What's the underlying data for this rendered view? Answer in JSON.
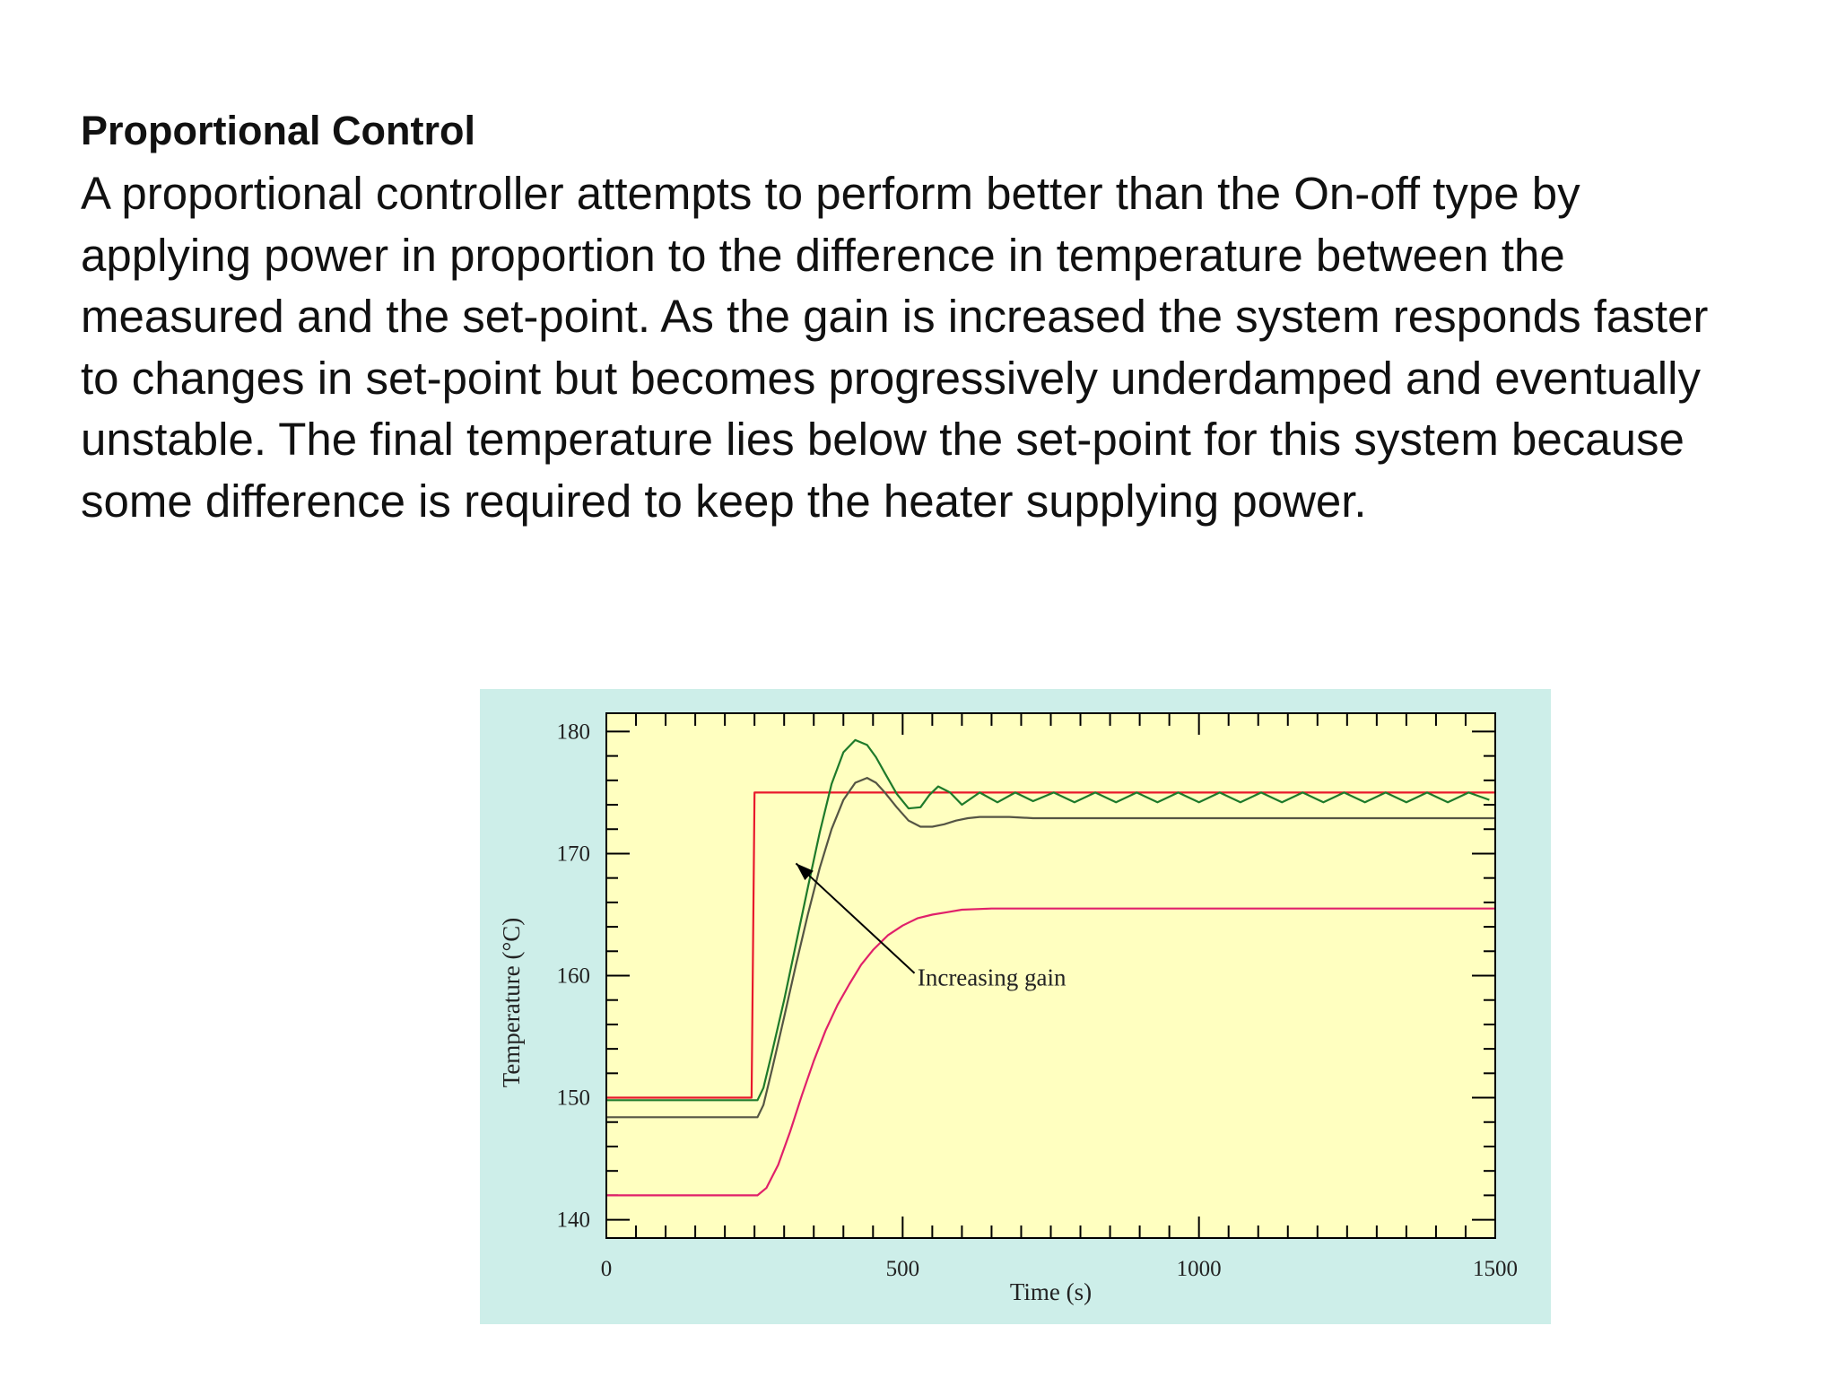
{
  "slide": {
    "title": "Proportional Control",
    "paragraph_lines": [
      "A proportional controller attempts to perform better than the On-off type by",
      "applying power in proportion to the difference in temperature between the",
      "measured and the set-point.  As the gain is increased the system responds faster",
      "to changes in set-point but becomes progressively underdamped and eventually",
      "unstable. The final temperature lies below the set-point for this system because",
      "some difference is required to keep the heater supplying power."
    ]
  },
  "chart_data": {
    "type": "line",
    "title": "",
    "xlabel": "Time (s)",
    "ylabel": "Temperature (°C)",
    "xlim": [
      0,
      1500
    ],
    "ylim": [
      138.5,
      181.5
    ],
    "x_ticks": [
      0,
      500,
      1000,
      1500
    ],
    "y_ticks": [
      140,
      150,
      160,
      170,
      180
    ],
    "x_minor_step": 50,
    "y_minor_step": 2,
    "grid": false,
    "annotation": {
      "text": "Increasing gain",
      "text_at": [
        525,
        159.2
      ],
      "arrow_from": [
        520,
        160.2
      ],
      "arrow_to": [
        320,
        169.2
      ]
    },
    "colors": {
      "panel": "#cdeee9",
      "plot_bg": "#ffffc0",
      "axis": "#000000"
    },
    "series": [
      {
        "color": "#e8192c",
        "x": [
          0,
          245,
          250,
          1500
        ],
        "y": [
          150,
          150,
          175,
          175
        ]
      },
      {
        "color": "#e0206a",
        "x": [
          0,
          255,
          270,
          290,
          310,
          330,
          350,
          370,
          390,
          410,
          430,
          450,
          475,
          500,
          525,
          550,
          575,
          600,
          650,
          700,
          1500
        ],
        "y": [
          142,
          142,
          142.6,
          144.5,
          147.2,
          150.2,
          153.0,
          155.5,
          157.6,
          159.3,
          160.9,
          162.1,
          163.3,
          164.1,
          164.7,
          165.0,
          165.2,
          165.4,
          165.5,
          165.5,
          165.5
        ]
      },
      {
        "color": "#555544",
        "x": [
          0,
          255,
          265,
          280,
          300,
          320,
          340,
          360,
          380,
          400,
          420,
          440,
          455,
          470,
          490,
          510,
          530,
          550,
          570,
          590,
          610,
          630,
          650,
          680,
          720,
          1500
        ],
        "y": [
          148.4,
          148.4,
          149.4,
          152.4,
          156.6,
          160.9,
          165.0,
          168.8,
          172.0,
          174.4,
          175.8,
          176.2,
          175.8,
          175.0,
          173.8,
          172.7,
          172.2,
          172.2,
          172.4,
          172.7,
          172.9,
          173.0,
          173.0,
          173.0,
          172.9,
          172.9
        ]
      },
      {
        "color": "#1e7a2a",
        "x": [
          0,
          255,
          265,
          280,
          300,
          320,
          340,
          360,
          380,
          400,
          420,
          440,
          455,
          470,
          490,
          510,
          530,
          545,
          560,
          580,
          600,
          630,
          660,
          690,
          720,
          755,
          790,
          825,
          860,
          895,
          930,
          965,
          1000,
          1035,
          1070,
          1105,
          1140,
          1175,
          1210,
          1245,
          1280,
          1315,
          1350,
          1385,
          1420,
          1455,
          1490
        ],
        "y": [
          149.8,
          149.8,
          150.8,
          153.8,
          158.0,
          162.6,
          167.2,
          171.7,
          175.7,
          178.3,
          179.3,
          178.9,
          177.9,
          176.6,
          174.9,
          173.7,
          173.8,
          174.8,
          175.5,
          175.0,
          174.0,
          175.0,
          174.2,
          175.0,
          174.3,
          175.0,
          174.2,
          175.0,
          174.2,
          175.0,
          174.2,
          175.0,
          174.2,
          175.0,
          174.2,
          175.0,
          174.2,
          175.0,
          174.2,
          175.0,
          174.2,
          175.0,
          174.2,
          175.0,
          174.2,
          175.0,
          174.4
        ]
      }
    ]
  }
}
